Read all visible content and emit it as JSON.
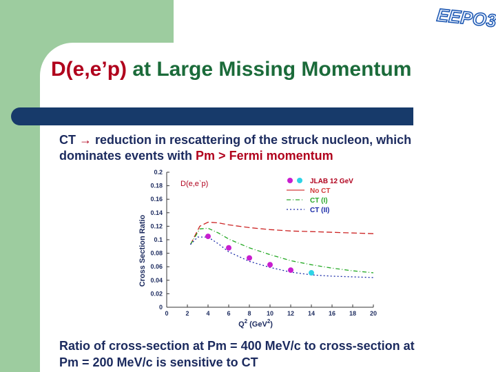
{
  "logo": {
    "text": "EEPO3"
  },
  "title": {
    "part_red": "D(e,e’p)",
    "part_green": " at Large Missing Momentum"
  },
  "bullet1": {
    "ct": "CT",
    "arrow": "→",
    "text1": " reduction in rescattering of the struck nucleon, which",
    "text2": "dominates events with ",
    "pm_gt_fermi": "Pm > Fermi momentum"
  },
  "bottom": {
    "line1": "Ratio of cross-section at Pm = 400 MeV/c  to cross-section at",
    "line2": " Pm = 200 MeV/c is sensitive to CT"
  },
  "colors": {
    "title_red": "#b0001c",
    "title_green": "#1b6b3a",
    "bar": "#173a6a",
    "green_block": "#9dcc9f"
  },
  "chart_data": {
    "type": "line",
    "inner_label": "D(e,e`p)",
    "xlabel": "Q",
    "xlabel_sup": "2",
    "xlabel_units": " (GeV",
    "xlabel_units_sup": "2",
    "xlabel_close": ")",
    "ylabel": "Cross Section Ratio",
    "xlim": [
      0,
      20
    ],
    "ylim": [
      0,
      0.2
    ],
    "xticks": [
      "0",
      "2",
      "4",
      "6",
      "8",
      "10",
      "12",
      "14",
      "16",
      "18",
      "20"
    ],
    "yticks": [
      "0",
      "0.02",
      "0.04",
      "0.06",
      "0.08",
      "0.1",
      "0.12",
      "0.14",
      "0.16",
      "0.18",
      "0.2"
    ],
    "legend": [
      {
        "label": "JLAB 12 GeV",
        "color": "#b0001c",
        "style": "markers"
      },
      {
        "label": "No CT",
        "color": "#d23a3a",
        "style": "solid"
      },
      {
        "label": "CT (I)",
        "color": "#2aa82a",
        "style": "dashdot"
      },
      {
        "label": "CT (II)",
        "color": "#1a2aa8",
        "style": "dotted"
      }
    ],
    "series": [
      {
        "name": "No CT",
        "color": "#cc2222",
        "dash": "8,4",
        "points": [
          [
            2.3,
            0.093
          ],
          [
            3.2,
            0.12
          ],
          [
            4.0,
            0.126
          ],
          [
            5.0,
            0.125
          ],
          [
            6.0,
            0.122
          ],
          [
            8.0,
            0.118
          ],
          [
            10.0,
            0.115
          ],
          [
            12.0,
            0.113
          ],
          [
            14.0,
            0.112
          ],
          [
            16.0,
            0.111
          ],
          [
            18.0,
            0.11
          ],
          [
            20.0,
            0.109
          ]
        ]
      },
      {
        "name": "CT (I)",
        "color": "#22a822",
        "dash": "6,3,1,3",
        "points": [
          [
            2.3,
            0.093
          ],
          [
            3.2,
            0.116
          ],
          [
            4.0,
            0.117
          ],
          [
            5.0,
            0.11
          ],
          [
            6.0,
            0.101
          ],
          [
            8.0,
            0.088
          ],
          [
            10.0,
            0.078
          ],
          [
            12.0,
            0.069
          ],
          [
            14.0,
            0.063
          ],
          [
            16.0,
            0.058
          ],
          [
            18.0,
            0.054
          ],
          [
            20.0,
            0.051
          ]
        ]
      },
      {
        "name": "CT (II)",
        "color": "#1a2aa8",
        "dash": "2,3",
        "points": [
          [
            2.3,
            0.093
          ],
          [
            3.0,
            0.104
          ],
          [
            4.0,
            0.104
          ],
          [
            5.0,
            0.094
          ],
          [
            6.0,
            0.082
          ],
          [
            8.0,
            0.068
          ],
          [
            10.0,
            0.059
          ],
          [
            12.0,
            0.052
          ],
          [
            14.0,
            0.048
          ],
          [
            16.0,
            0.046
          ],
          [
            18.0,
            0.045
          ],
          [
            20.0,
            0.044
          ]
        ]
      }
    ],
    "data_points": [
      {
        "x": 4,
        "y": 0.105,
        "color": "#c81ecf"
      },
      {
        "x": 6,
        "y": 0.088,
        "color": "#c81ecf"
      },
      {
        "x": 8,
        "y": 0.073,
        "color": "#c81ecf"
      },
      {
        "x": 10,
        "y": 0.063,
        "color": "#c81ecf"
      },
      {
        "x": 12,
        "y": 0.055,
        "color": "#c81ecf"
      },
      {
        "x": 14,
        "y": 0.051,
        "color": "#2ed3e6"
      }
    ],
    "legend_markers": [
      "#c81ecf",
      "#2ed3e6"
    ]
  }
}
